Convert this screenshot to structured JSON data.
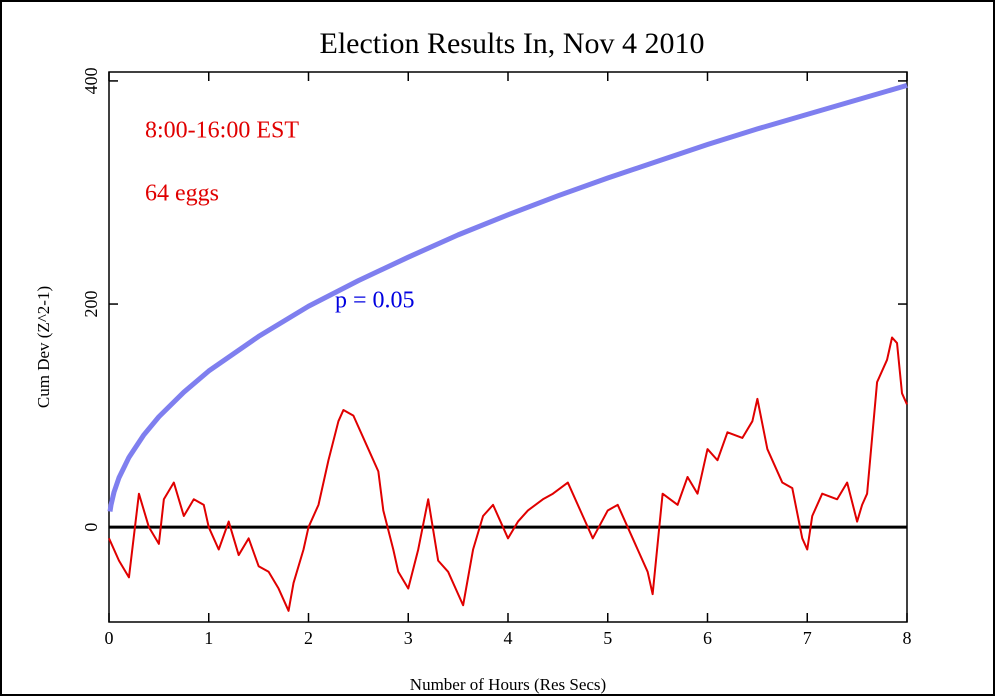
{
  "chart_data": {
    "type": "line",
    "title": "Election Results In, Nov 4 2010",
    "x_label": "Number of Hours (Res Secs)",
    "y_label": "Cum Dev (Z^2-1)",
    "xlim": [
      0,
      8
    ],
    "xticks": [
      0,
      1,
      2,
      3,
      4,
      5,
      6,
      7,
      8
    ],
    "ylim": [
      -85,
      408
    ],
    "yticks": [
      0,
      200,
      400
    ],
    "grid": false,
    "zero_line": true,
    "annotations": [
      {
        "text": "8:00-16:00 EST",
        "color": "#e00000"
      },
      {
        "text": "64 eggs",
        "color": "#e00000"
      },
      {
        "text": "p = 0.05",
        "color": "#0000e0"
      }
    ],
    "series": [
      {
        "color": "#7f7fef",
        "x": [
          0.01,
          0.02,
          0.05,
          0.1,
          0.2,
          0.35,
          0.5,
          0.75,
          1,
          1.5,
          2,
          2.5,
          3,
          3.5,
          4,
          4.5,
          5,
          5.5,
          6,
          6.5,
          7,
          7.5,
          8
        ],
        "values": [
          14,
          19.8,
          31.3,
          44.3,
          62.6,
          82.8,
          99,
          121,
          140,
          171,
          198,
          221,
          242,
          262,
          280,
          297,
          313,
          328,
          343,
          357,
          370,
          383,
          396
        ]
      },
      {
        "color": "#e00000",
        "x": [
          0,
          0.1,
          0.2,
          0.3,
          0.4,
          0.5,
          0.55,
          0.65,
          0.75,
          0.85,
          0.95,
          1.0,
          1.1,
          1.2,
          1.3,
          1.4,
          1.5,
          1.6,
          1.7,
          1.8,
          1.85,
          1.95,
          2.0,
          2.1,
          2.2,
          2.3,
          2.35,
          2.45,
          2.6,
          2.7,
          2.75,
          2.85,
          2.9,
          3.0,
          3.1,
          3.2,
          3.3,
          3.4,
          3.55,
          3.65,
          3.75,
          3.85,
          4.0,
          4.1,
          4.2,
          4.35,
          4.45,
          4.6,
          4.75,
          4.85,
          5.0,
          5.1,
          5.2,
          5.3,
          5.4,
          5.45,
          5.55,
          5.7,
          5.8,
          5.9,
          6.0,
          6.1,
          6.2,
          6.35,
          6.45,
          6.5,
          6.6,
          6.75,
          6.85,
          6.95,
          7.0,
          7.05,
          7.15,
          7.3,
          7.4,
          7.5,
          7.55,
          7.6,
          7.7,
          7.8,
          7.85,
          7.9,
          7.95,
          8.0
        ],
        "values": [
          -10,
          -30,
          -45,
          30,
          0,
          -15,
          25,
          40,
          10,
          25,
          20,
          0,
          -20,
          5,
          -25,
          -10,
          -35,
          -40,
          -55,
          -75,
          -50,
          -20,
          0,
          20,
          60,
          95,
          105,
          100,
          70,
          50,
          15,
          -20,
          -40,
          -55,
          -20,
          25,
          -30,
          -40,
          -70,
          -20,
          10,
          20,
          -10,
          5,
          15,
          25,
          30,
          40,
          10,
          -10,
          15,
          20,
          0,
          -20,
          -40,
          -60,
          30,
          20,
          45,
          30,
          70,
          60,
          85,
          80,
          95,
          115,
          70,
          40,
          35,
          -10,
          -20,
          10,
          30,
          25,
          40,
          5,
          20,
          30,
          130,
          150,
          170,
          165,
          120,
          110
        ]
      }
    ]
  }
}
